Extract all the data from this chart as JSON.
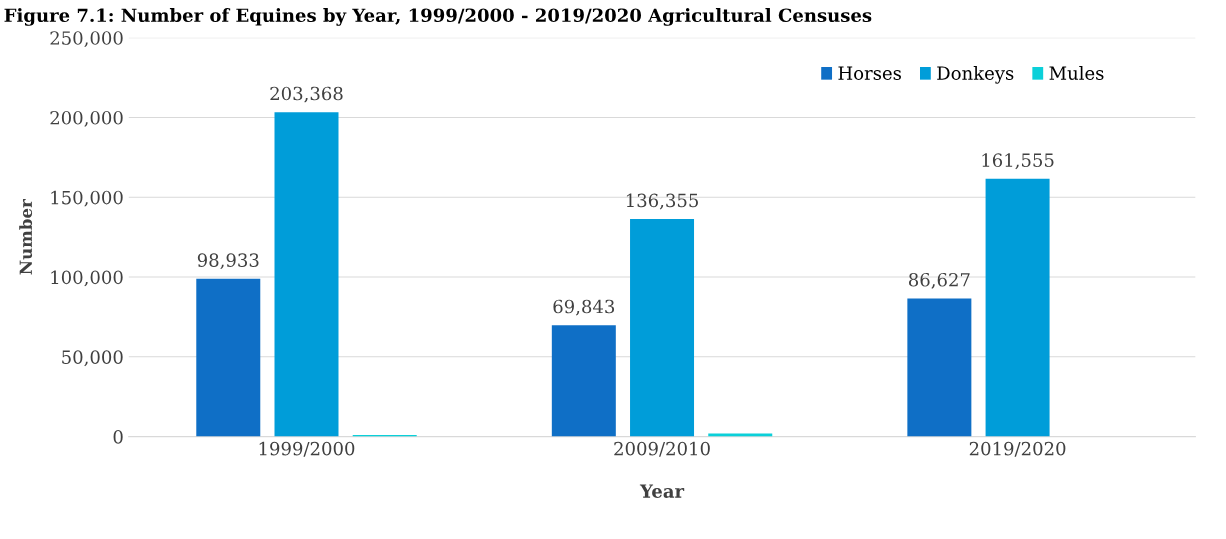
{
  "chart_data": {
    "type": "bar",
    "title": "Figure 7.1: Number of Equines by Year, 1999/2000 - 2019/2020 Agricultural Censuses",
    "xlabel": "Year",
    "ylabel": "Number",
    "categories": [
      "1999/2000",
      "2009/2010",
      "2019/2020"
    ],
    "series": [
      {
        "name": "Horses",
        "color": "#0f6fc6",
        "values": [
          98933,
          69843,
          86627
        ],
        "value_labels": [
          "98,933",
          "69,843",
          "86,627"
        ]
      },
      {
        "name": "Donkeys",
        "color": "#009dd9",
        "values": [
          203368,
          136355,
          161555
        ],
        "value_labels": [
          "203,368",
          "136,355",
          "161,555"
        ]
      },
      {
        "name": "Mules",
        "color": "#0bd0d9",
        "values": [
          1000,
          2000,
          0
        ]
      }
    ],
    "ylim": [
      0,
      250000
    ],
    "yticks": [
      {
        "value": 0,
        "label": "0"
      },
      {
        "value": 50000,
        "label": "50,000"
      },
      {
        "value": 100000,
        "label": "100,000"
      },
      {
        "value": 150000,
        "label": "150,000"
      },
      {
        "value": 200000,
        "label": "200,000"
      },
      {
        "value": 250000,
        "label": "250,000"
      }
    ],
    "grid": "y",
    "legend": "top right"
  }
}
